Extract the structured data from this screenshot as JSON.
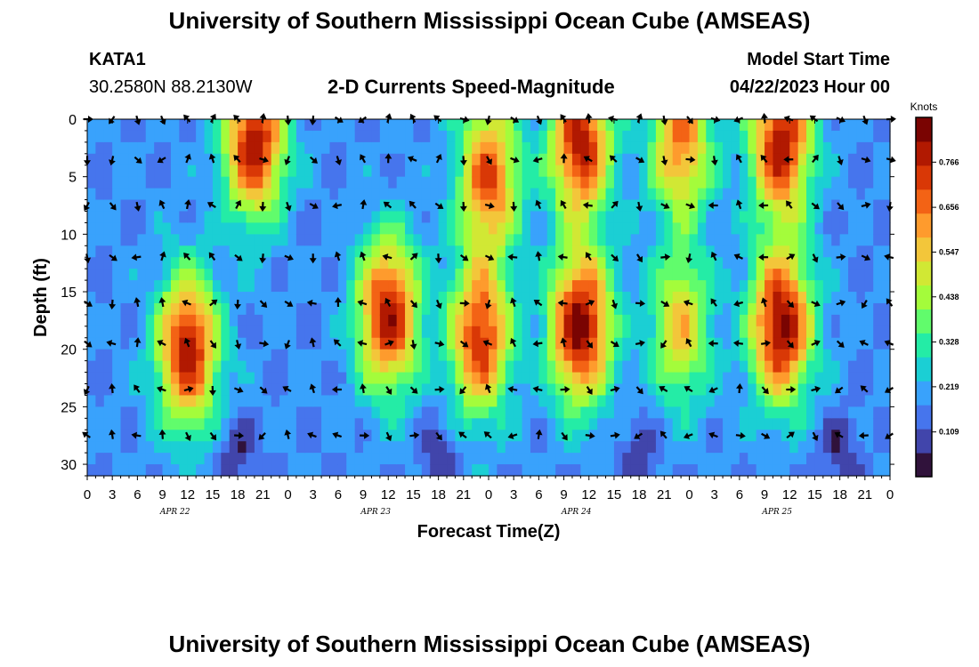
{
  "page": {
    "title": "University of Southern Mississippi Ocean Cube (AMSEAS)",
    "bottom_title": "University of Southern Mississippi Ocean Cube (AMSEAS)",
    "station": "KATA1",
    "coords": "30.2580N  88.2130W",
    "model_start_label": "Model Start Time",
    "model_start_value": "04/22/2023 Hour 00"
  },
  "chart_data": {
    "type": "heatmap",
    "title": "2-D Currents Speed-Magnitude",
    "xlabel": "Forecast Time(Z)",
    "ylabel": "Depth (ft)",
    "colorbar_title": "Knots",
    "colorbar_ticks": [
      "0.766",
      "0.656",
      "0.547",
      "0.438",
      "0.328",
      "0.219",
      "0.109"
    ],
    "colorbar_range": [
      0,
      0.875
    ],
    "x_hours_range": [
      0,
      96
    ],
    "x_tick_labels": [
      "0",
      "3",
      "6",
      "9",
      "12",
      "15",
      "18",
      "21",
      "0",
      "3",
      "6",
      "9",
      "12",
      "15",
      "18",
      "21",
      "0",
      "3",
      "6",
      "9",
      "12",
      "15",
      "18",
      "21",
      "0",
      "3",
      "6",
      "9",
      "12",
      "15",
      "18",
      "21",
      "0"
    ],
    "date_labels": [
      {
        "label": "APR 22",
        "hour": 10.5
      },
      {
        "label": "APR 23",
        "hour": 34.5
      },
      {
        "label": "APR 24",
        "hour": 58.5
      },
      {
        "label": "APR 25",
        "hour": 82.5
      }
    ],
    "y_ticks": [
      0,
      5,
      10,
      15,
      20,
      25,
      30
    ],
    "ylim": [
      0,
      31
    ],
    "speed_peaks_knots": [
      {
        "hour": 12,
        "depth": 20,
        "speed": 0.8
      },
      {
        "hour": 20,
        "depth": 2,
        "speed": 0.8
      },
      {
        "hour": 36,
        "depth": 17,
        "speed": 0.8
      },
      {
        "hour": 48,
        "depth": 5,
        "speed": 0.7
      },
      {
        "hour": 47,
        "depth": 19,
        "speed": 0.75
      },
      {
        "hour": 59,
        "depth": 2,
        "speed": 0.8
      },
      {
        "hour": 59,
        "depth": 18,
        "speed": 0.85
      },
      {
        "hour": 71,
        "depth": 2,
        "speed": 0.65
      },
      {
        "hour": 71,
        "depth": 18,
        "speed": 0.55
      },
      {
        "hour": 83,
        "depth": 2,
        "speed": 0.8
      },
      {
        "hour": 83,
        "depth": 18,
        "speed": 0.85
      }
    ],
    "arrow_depths": [
      0,
      3.5,
      7.5,
      12,
      16,
      19.5,
      23.5,
      27.5
    ],
    "arrow_hours": [
      0,
      3,
      6,
      9,
      12,
      15,
      18,
      21,
      24,
      27,
      30,
      33,
      36,
      39,
      42,
      45,
      48,
      51,
      54,
      57,
      60,
      63,
      66,
      69,
      72,
      75,
      78,
      81,
      84,
      87,
      90,
      93,
      96
    ]
  },
  "colors": {
    "colormap": [
      "#30123b",
      "#4145ab",
      "#4675ed",
      "#39a2fc",
      "#1bcfd4",
      "#24eca6",
      "#61fc6c",
      "#a4fc3b",
      "#d1e834",
      "#f3c63a",
      "#fe9b2d",
      "#f36315",
      "#d93806",
      "#b11901",
      "#7a0402"
    ]
  }
}
